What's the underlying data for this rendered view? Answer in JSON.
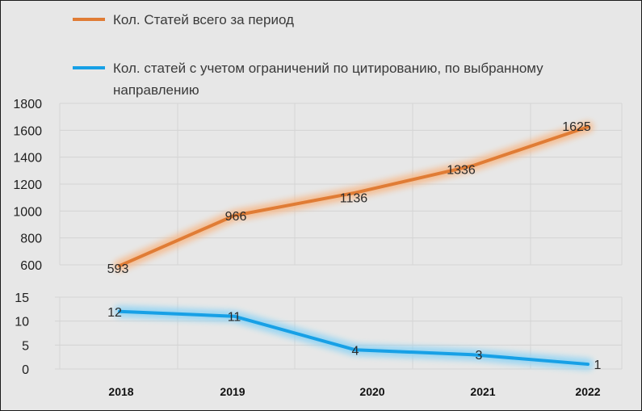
{
  "colors": {
    "orange": "#e07c35",
    "orange_glow": "#f6b98a",
    "blue": "#17a0e6",
    "blue_glow": "#8dd3f4",
    "grid": "#d4d4d4",
    "background": "#e7e7e7"
  },
  "chart_data": {
    "type": "line",
    "x": [
      "2018",
      "2019",
      "2020",
      "2021",
      "2022"
    ],
    "xlabel": "",
    "ylabel": "",
    "grid": true,
    "legend_position": "top-left",
    "series": [
      {
        "name": "Кол. Статей всего за период",
        "legend_label": "Кол. Статей всего за период",
        "values": [
          593,
          966,
          1136,
          1336,
          1625
        ],
        "data_labels": [
          "593",
          "966",
          "1136",
          "1336",
          "1625"
        ],
        "panel": "upper",
        "ylim": [
          600,
          1800
        ],
        "yticks": [
          600,
          800,
          1000,
          1200,
          1400,
          1600,
          1800
        ],
        "ytick_labels": [
          "600",
          "800",
          "1000",
          "1200",
          "1400",
          "1600",
          "1800"
        ]
      },
      {
        "name": "Кол. статей с учетом ограничений по цитированию, по выбранному направлению",
        "legend_label_line1": "Кол. статей с учетом ограничений по цитированию, по выбранному",
        "legend_label_line2": "направлению",
        "values": [
          12,
          11,
          4,
          3,
          1
        ],
        "data_labels": [
          "12",
          "11",
          "4",
          "3",
          "1"
        ],
        "panel": "lower",
        "ylim": [
          0,
          15
        ],
        "yticks": [
          0,
          5,
          10,
          15
        ],
        "ytick_labels": [
          "0",
          "5",
          "10",
          "15"
        ]
      }
    ]
  }
}
